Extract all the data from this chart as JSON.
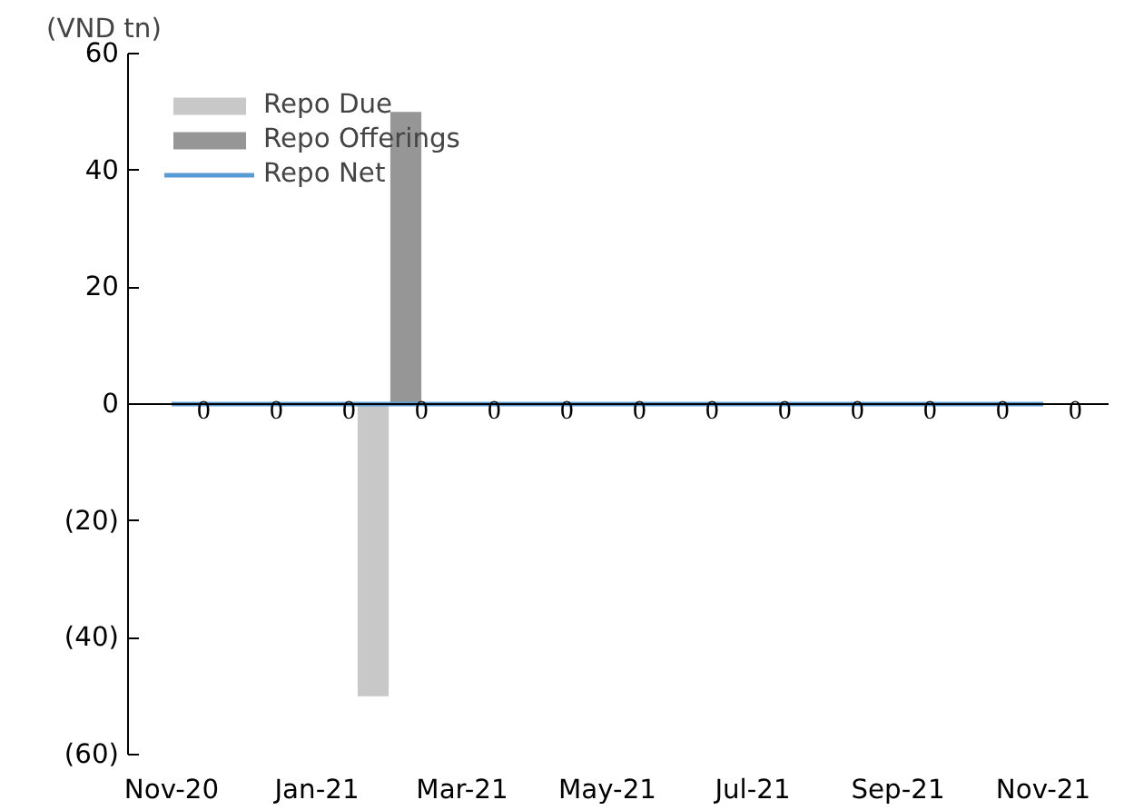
{
  "chart_data": {
    "type": "bar",
    "ylabel": "(VND tn)",
    "categories": [
      "Nov-20",
      null,
      "Jan-21",
      null,
      "Mar-21",
      null,
      "May-21",
      null,
      "Jul-21",
      null,
      "Sep-21",
      null,
      "Nov-21"
    ],
    "series": [
      {
        "name": "Repo Due",
        "color": "#c8c8c8",
        "values": [
          0,
          0,
          0,
          -50,
          0,
          0,
          0,
          0,
          0,
          0,
          0,
          0,
          0
        ]
      },
      {
        "name": "Repo Offerings",
        "color": "#969696",
        "values": [
          0,
          0,
          0,
          50,
          0,
          0,
          0,
          0,
          0,
          0,
          0,
          0,
          0
        ]
      },
      {
        "name": "Repo Net",
        "type": "line",
        "color": "#5b9bd5",
        "values": [
          0,
          0,
          0,
          0,
          0,
          0,
          0,
          0,
          0,
          0,
          0,
          0,
          0
        ],
        "value_labels": [
          "0",
          "0",
          "0",
          "0",
          "0",
          "0",
          "0",
          "0",
          "0",
          "0",
          "0",
          "0",
          "0"
        ]
      }
    ],
    "ylim": [
      -60,
      60
    ],
    "yticks": [
      {
        "value": -60,
        "label": "(60)"
      },
      {
        "value": -40,
        "label": "(40)"
      },
      {
        "value": -20,
        "label": "(20)"
      },
      0,
      20,
      40,
      60
    ],
    "ref_lines": [
      {
        "axis": "y",
        "value": 0,
        "color": "#000000"
      }
    ],
    "grid": false,
    "legend": "top left"
  }
}
